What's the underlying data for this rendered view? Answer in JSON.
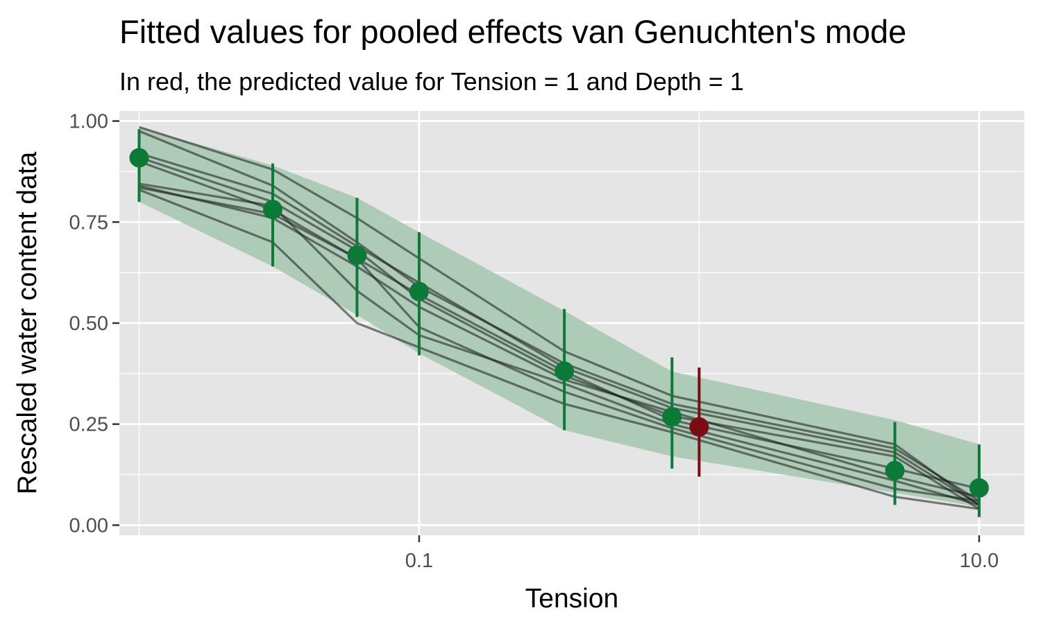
{
  "chart_data": {
    "type": "line",
    "title": "Fitted values for pooled effects van Genuchten's mode",
    "subtitle": "In red, the predicted value for Tension = 1 and Depth = 1",
    "xlabel": "Tension",
    "ylabel": "Rescaled water content data",
    "x_scale": "log10",
    "x_ticks": [
      0.1,
      10.0
    ],
    "x_tick_labels": [
      "0.1",
      "10.0"
    ],
    "y_ticks": [
      0,
      0.25,
      0.5,
      0.75,
      1.0
    ],
    "y_tick_labels": [
      "0.00",
      "0.25",
      "0.50",
      "0.75",
      "1.00"
    ],
    "xlim": [
      0.0085,
      14.5
    ],
    "ylim": [
      -0.025,
      1.025
    ],
    "grid": true,
    "x": [
      0.01,
      0.03,
      0.06,
      0.1,
      0.33,
      0.8,
      5.0,
      10.0
    ],
    "fitted": {
      "values": [
        0.909,
        0.781,
        0.668,
        0.578,
        0.381,
        0.268,
        0.135,
        0.092
      ],
      "lower": [
        0.8,
        0.64,
        0.515,
        0.42,
        0.235,
        0.14,
        0.05,
        0.02
      ],
      "upper": [
        0.98,
        0.895,
        0.81,
        0.725,
        0.535,
        0.415,
        0.255,
        0.2
      ],
      "band_lower": [
        0.8,
        0.64,
        0.52,
        0.425,
        0.235,
        0.17,
        0.08,
        0.045
      ],
      "band_upper": [
        0.985,
        0.89,
        0.81,
        0.725,
        0.53,
        0.38,
        0.26,
        0.2
      ],
      "color": "#0b7a36",
      "band_color": "#a6c8b1"
    },
    "predicted": {
      "x": 1.0,
      "value": 0.243,
      "lower": 0.12,
      "upper": 0.39,
      "color": "#7a0c14"
    },
    "series": [
      {
        "values": [
          0.985,
          0.88,
          0.76,
          0.66,
          0.43,
          0.32,
          0.2,
          0.05
        ]
      },
      {
        "values": [
          0.975,
          0.84,
          0.7,
          0.59,
          0.4,
          0.3,
          0.19,
          0.06
        ]
      },
      {
        "values": [
          0.92,
          0.82,
          0.69,
          0.6,
          0.39,
          0.29,
          0.18,
          0.05
        ]
      },
      {
        "values": [
          0.91,
          0.8,
          0.68,
          0.56,
          0.37,
          0.27,
          0.17,
          0.04
        ]
      },
      {
        "values": [
          0.9,
          0.78,
          0.66,
          0.57,
          0.38,
          0.26,
          0.14,
          0.09
        ]
      },
      {
        "values": [
          0.845,
          0.79,
          0.58,
          0.47,
          0.35,
          0.25,
          0.11,
          0.05
        ]
      },
      {
        "values": [
          0.835,
          0.77,
          0.66,
          0.49,
          0.33,
          0.24,
          0.09,
          0.06
        ]
      },
      {
        "values": [
          0.83,
          0.7,
          0.5,
          0.44,
          0.3,
          0.23,
          0.07,
          0.04
        ]
      },
      {
        "values": [
          0.84,
          0.76,
          0.64,
          0.54,
          0.36,
          0.28,
          0.12,
          0.07
        ]
      }
    ],
    "line_color": "#1a1a1a",
    "panel_color": "#e5e5e5",
    "grid_color": "#ffffff"
  }
}
